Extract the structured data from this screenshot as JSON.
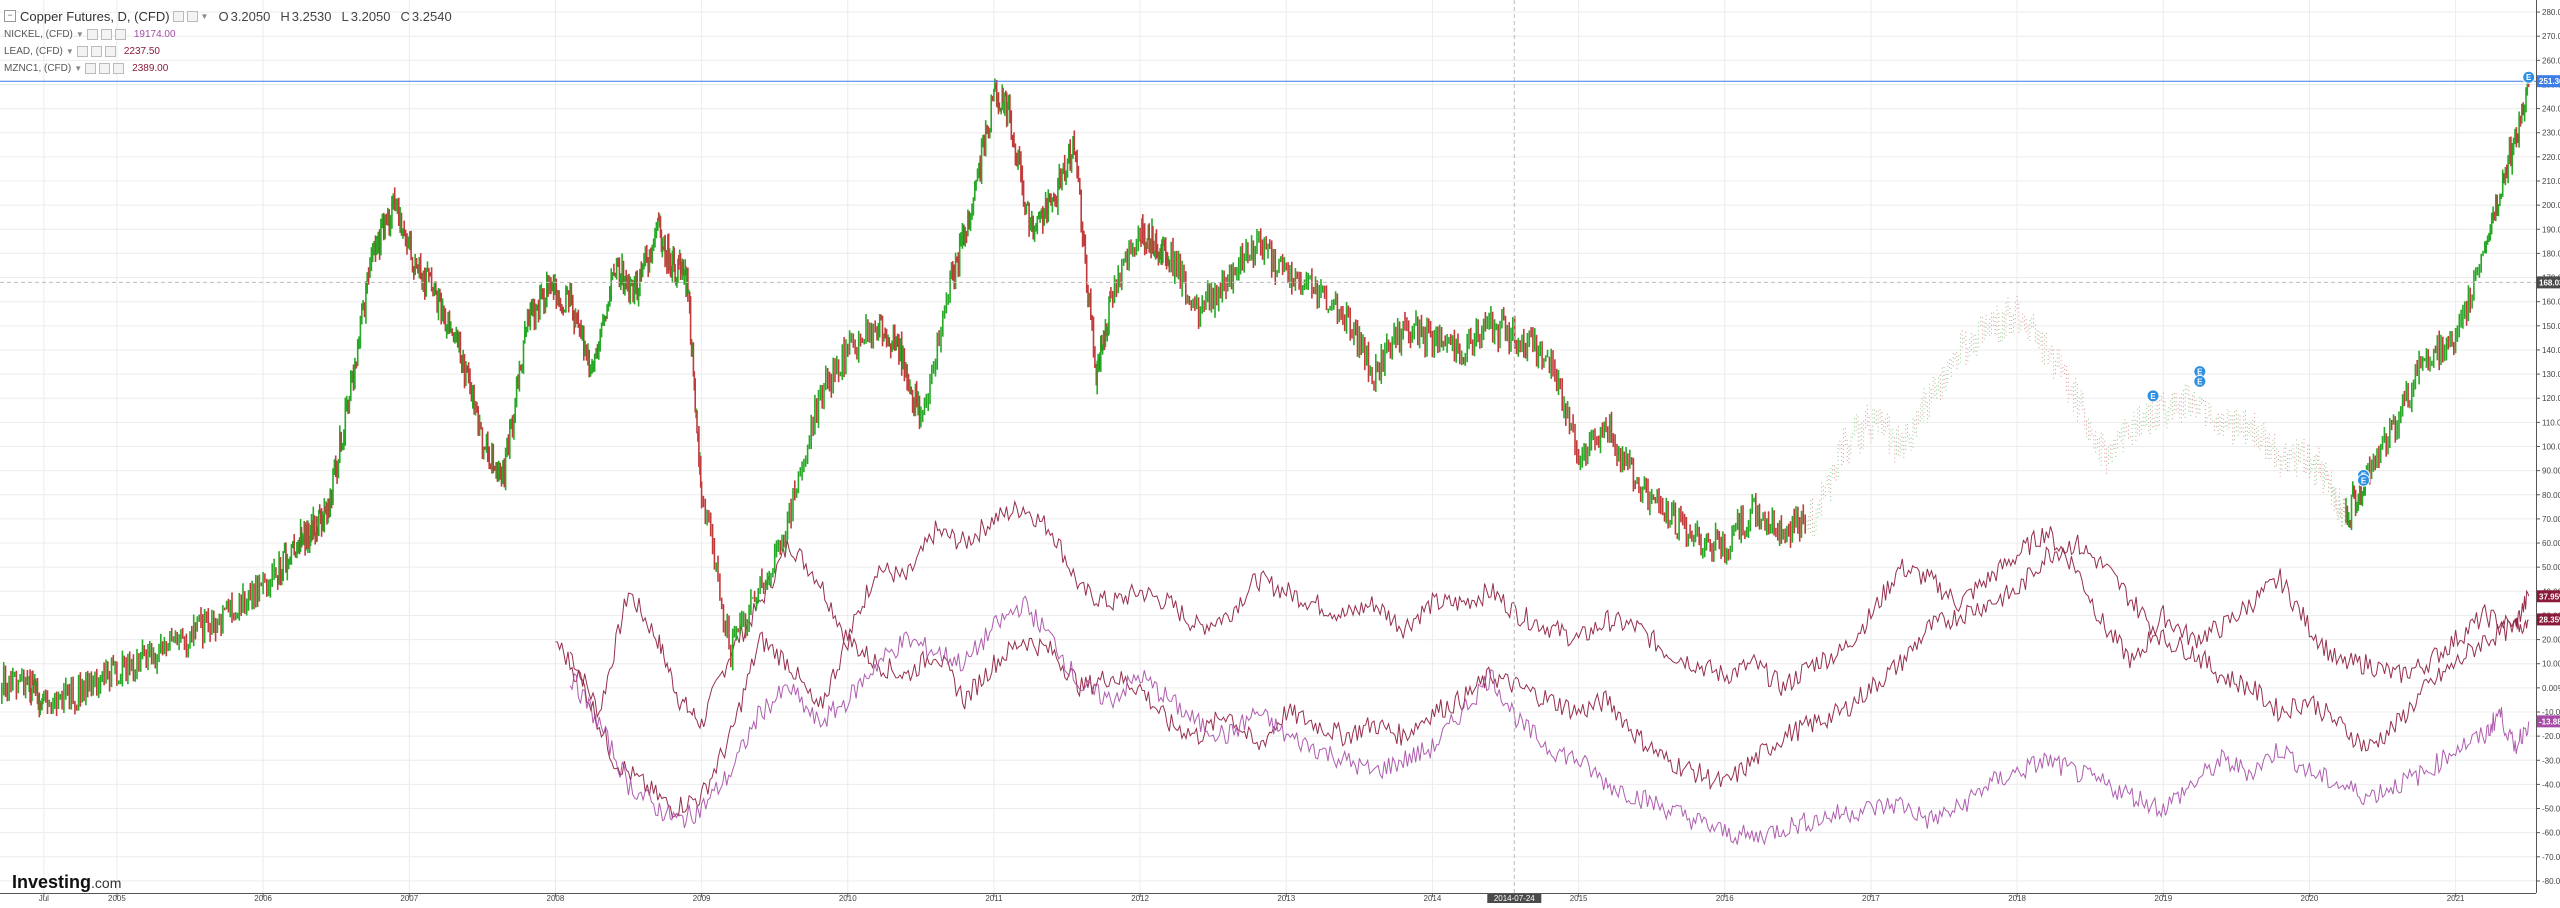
{
  "legend": {
    "main_title": "Copper Futures, D, (CFD)",
    "ohlc": {
      "o_label": "O",
      "o_value": "3.2050",
      "h_label": "H",
      "h_value": "3.2530",
      "l_label": "L",
      "l_value": "3.2050",
      "c_label": "C",
      "c_value": "3.2540"
    },
    "overlays": [
      {
        "name": "NICKEL, (CFD)",
        "value": "19174.00",
        "color": "#a64ca6"
      },
      {
        "name": "LEAD, (CFD)",
        "value": "2237.50",
        "color": "#8b1a3a"
      },
      {
        "name": "MZNC1, (CFD)",
        "value": "2389.00",
        "color": "#8b1a3a"
      }
    ]
  },
  "brand": {
    "name": "Investing",
    "suffix": ".com"
  },
  "chart_data": {
    "type": "line",
    "title": "Copper Futures, D, (CFD)",
    "y_unit": "%",
    "ylim": [
      -85,
      285
    ],
    "y_ticks": [
      "280.00%",
      "270.00%",
      "260.00%",
      "250.00%",
      "240.00%",
      "230.00%",
      "220.00%",
      "210.00%",
      "200.00%",
      "190.00%",
      "180.00%",
      "170.00%",
      "160.00%",
      "150.00%",
      "140.00%",
      "130.00%",
      "120.00%",
      "110.00%",
      "100.00%",
      "90.00%",
      "80.00%",
      "70.00%",
      "60.00%",
      "50.00%",
      "40.00%",
      "30.00%",
      "20.00%",
      "10.00%",
      "0.00%",
      "-10.00%",
      "-20.00%",
      "-30.00%",
      "-40.00%",
      "-50.00%",
      "-60.00%",
      "-70.00%",
      "-80.00%"
    ],
    "y_tick_values": [
      280,
      270,
      260,
      250,
      240,
      230,
      220,
      210,
      200,
      190,
      180,
      170,
      160,
      150,
      140,
      130,
      120,
      110,
      100,
      90,
      80,
      70,
      60,
      50,
      40,
      30,
      20,
      10,
      0,
      -10,
      -20,
      -30,
      -40,
      -50,
      -60,
      -70,
      -80
    ],
    "xlim": [
      2004.2,
      2021.55
    ],
    "x_ticks": [
      {
        "label": "Jul",
        "x": 2004.5
      },
      {
        "label": "2005",
        "x": 2005.0
      },
      {
        "label": "2006",
        "x": 2006.0
      },
      {
        "label": "2007",
        "x": 2007.0
      },
      {
        "label": "2008",
        "x": 2008.0
      },
      {
        "label": "2009",
        "x": 2009.0
      },
      {
        "label": "2010",
        "x": 2010.0
      },
      {
        "label": "2011",
        "x": 2011.0
      },
      {
        "label": "2012",
        "x": 2012.0
      },
      {
        "label": "2013",
        "x": 2013.0
      },
      {
        "label": "2014",
        "x": 2014.0
      },
      {
        "label": "2015",
        "x": 2015.0
      },
      {
        "label": "2016",
        "x": 2016.0
      },
      {
        "label": "2017",
        "x": 2017.0
      },
      {
        "label": "2018",
        "x": 2018.0
      },
      {
        "label": "2019",
        "x": 2019.0
      },
      {
        "label": "2020",
        "x": 2020.0
      },
      {
        "label": "2021",
        "x": 2021.0
      }
    ],
    "crosshair": {
      "x": 2014.56,
      "x_label": "2014-07-24",
      "y": 168,
      "y_label": "168.0300"
    },
    "price_line": {
      "y": 251.36,
      "label": "251.36%",
      "color": "#3d7de8"
    },
    "end_labels": [
      {
        "label": "37.95%",
        "y": 37.95,
        "color": "#8b1a3a"
      },
      {
        "label": "28.35%",
        "y": 28.35,
        "color": "#8b1a3a"
      },
      {
        "label": "-13.88%",
        "y": -13.88,
        "color": "#a64ca6"
      }
    ],
    "event_markers": [
      {
        "x": 2018.93,
        "y": 121
      },
      {
        "x": 2019.25,
        "y": 131
      },
      {
        "x": 2019.25,
        "y": 127
      },
      {
        "x": 2020.37,
        "y": 88
      },
      {
        "x": 2020.37,
        "y": 86
      },
      {
        "x": 2021.5,
        "y": 253
      }
    ],
    "series": [
      {
        "name": "Copper Futures, D, (CFD)",
        "color_up": "#27a827",
        "color_down": "#c23b3b",
        "x": [
          2004.2,
          2004.4,
          2004.5,
          2004.7,
          2004.9,
          2005.1,
          2005.3,
          2005.5,
          2005.7,
          2005.9,
          2006.1,
          2006.25,
          2006.35,
          2006.45,
          2006.6,
          2006.75,
          2006.9,
          2007.05,
          2007.2,
          2007.35,
          2007.5,
          2007.65,
          2007.8,
          2007.95,
          2008.1,
          2008.25,
          2008.4,
          2008.55,
          2008.7,
          2008.8,
          2008.9,
          2009.0,
          2009.2,
          2009.4,
          2009.6,
          2009.8,
          2010.0,
          2010.2,
          2010.35,
          2010.5,
          2010.7,
          2010.85,
          2011.0,
          2011.1,
          2011.25,
          2011.4,
          2011.55,
          2011.7,
          2011.8,
          2012.0,
          2012.1,
          2012.2,
          2012.4,
          2012.6,
          2012.8,
          2013.0,
          2013.2,
          2013.4,
          2013.6,
          2013.8,
          2014.0,
          2014.2,
          2014.4,
          2014.6,
          2014.8,
          2015.0,
          2015.2,
          2015.4,
          2015.6,
          2015.8,
          2016.0,
          2016.2,
          2016.4,
          2016.6,
          2016.8,
          2017.0,
          2017.2,
          2017.4,
          2017.6,
          2017.8,
          2018.0,
          2018.2,
          2018.4,
          2018.6,
          2018.8,
          2019.0,
          2019.2,
          2019.4,
          2019.6,
          2019.8,
          2020.0,
          2020.15,
          2020.25,
          2020.4,
          2020.6,
          2020.8,
          2021.0,
          2021.2,
          2021.35,
          2021.5
        ],
        "y": [
          2,
          0,
          -8,
          -3,
          5,
          10,
          15,
          22,
          28,
          38,
          48,
          62,
          66,
          75,
          125,
          180,
          200,
          175,
          160,
          140,
          100,
          88,
          150,
          165,
          160,
          130,
          175,
          165,
          190,
          175,
          170,
          80,
          15,
          40,
          70,
          120,
          140,
          150,
          140,
          110,
          165,
          200,
          245,
          240,
          190,
          200,
          225,
          130,
          160,
          190,
          185,
          180,
          155,
          170,
          185,
          170,
          165,
          155,
          130,
          150,
          145,
          140,
          150,
          145,
          135,
          98,
          108,
          85,
          72,
          62,
          58,
          73,
          65,
          70,
          100,
          110,
          100,
          120,
          140,
          150,
          155,
          140,
          120,
          95,
          110,
          115,
          120,
          110,
          105,
          95,
          95,
          82,
          70,
          90,
          110,
          140,
          140,
          185,
          215,
          250
        ]
      },
      {
        "name": "MZNC1, (CFD)",
        "color": "#8b1a3a",
        "x": [
          2008.1,
          2008.3,
          2008.5,
          2008.7,
          2008.85,
          2009.0,
          2009.2,
          2009.4,
          2009.6,
          2009.8,
          2010.0,
          2010.2,
          2010.4,
          2010.6,
          2010.8,
          2011.0,
          2011.2,
          2011.4,
          2011.6,
          2011.8,
          2012.0,
          2012.2,
          2012.4,
          2012.6,
          2012.8,
          2013.0,
          2013.2,
          2013.4,
          2013.6,
          2013.8,
          2014.0,
          2014.2,
          2014.4,
          2014.6,
          2014.8,
          2015.0,
          2015.2,
          2015.4,
          2015.6,
          2015.8,
          2016.0,
          2016.2,
          2016.4,
          2016.6,
          2016.8,
          2017.0,
          2017.2,
          2017.4,
          2017.6,
          2017.8,
          2018.0,
          2018.2,
          2018.4,
          2018.6,
          2018.8,
          2019.0,
          2019.2,
          2019.4,
          2019.6,
          2019.8,
          2020.0,
          2020.2,
          2020.4,
          2020.6,
          2020.8,
          2021.0,
          2021.2,
          2021.4,
          2021.5
        ],
        "y": [
          15,
          -10,
          40,
          20,
          -5,
          -15,
          15,
          35,
          60,
          45,
          20,
          50,
          45,
          65,
          60,
          70,
          75,
          65,
          40,
          35,
          40,
          35,
          25,
          30,
          45,
          40,
          35,
          30,
          35,
          25,
          35,
          35,
          40,
          30,
          25,
          20,
          28,
          25,
          15,
          10,
          5,
          10,
          0,
          10,
          15,
          30,
          50,
          45,
          35,
          45,
          55,
          65,
          50,
          25,
          10,
          30,
          20,
          25,
          35,
          45,
          25,
          10,
          10,
          5,
          10,
          20,
          30,
          25,
          38
        ]
      },
      {
        "name": "LEAD, (CFD)",
        "color": "#8b1a3a",
        "x": [
          2008.0,
          2008.2,
          2008.4,
          2008.6,
          2008.8,
          2009.0,
          2009.2,
          2009.4,
          2009.6,
          2009.8,
          2010.0,
          2010.2,
          2010.4,
          2010.6,
          2010.8,
          2011.0,
          2011.2,
          2011.4,
          2011.6,
          2011.8,
          2012.0,
          2012.2,
          2012.4,
          2012.6,
          2012.8,
          2013.0,
          2013.2,
          2013.4,
          2013.6,
          2013.8,
          2014.0,
          2014.2,
          2014.4,
          2014.6,
          2014.8,
          2015.0,
          2015.2,
          2015.4,
          2015.6,
          2015.8,
          2016.0,
          2016.2,
          2016.4,
          2016.6,
          2016.8,
          2017.0,
          2017.2,
          2017.4,
          2017.6,
          2017.8,
          2018.0,
          2018.2,
          2018.4,
          2018.6,
          2018.8,
          2019.0,
          2019.2,
          2019.4,
          2019.6,
          2019.8,
          2020.0,
          2020.2,
          2020.4,
          2020.6,
          2020.8,
          2021.0,
          2021.2,
          2021.4,
          2021.5
        ],
        "y": [
          20,
          0,
          -30,
          -40,
          -50,
          -45,
          -20,
          20,
          10,
          -10,
          20,
          10,
          5,
          15,
          -5,
          10,
          20,
          15,
          0,
          5,
          0,
          -15,
          -20,
          -10,
          -25,
          -10,
          -15,
          -20,
          -15,
          -20,
          -10,
          -5,
          5,
          0,
          -5,
          -10,
          -5,
          -20,
          -30,
          -35,
          -40,
          -30,
          -20,
          -15,
          -10,
          0,
          10,
          25,
          30,
          35,
          40,
          55,
          60,
          50,
          35,
          20,
          15,
          5,
          0,
          -10,
          -5,
          -15,
          -25,
          -15,
          0,
          10,
          20,
          25,
          28
        ]
      },
      {
        "name": "NICKEL, (CFD)",
        "color": "#a64ca6",
        "x": [
          2008.1,
          2008.3,
          2008.5,
          2008.7,
          2008.85,
          2009.0,
          2009.2,
          2009.4,
          2009.6,
          2009.8,
          2010.0,
          2010.2,
          2010.4,
          2010.6,
          2010.8,
          2011.0,
          2011.2,
          2011.4,
          2011.6,
          2011.8,
          2012.0,
          2012.2,
          2012.4,
          2012.6,
          2012.8,
          2013.0,
          2013.2,
          2013.4,
          2013.6,
          2013.8,
          2014.0,
          2014.2,
          2014.4,
          2014.6,
          2014.8,
          2015.0,
          2015.2,
          2015.4,
          2015.6,
          2015.8,
          2016.0,
          2016.2,
          2016.4,
          2016.6,
          2016.8,
          2017.0,
          2017.2,
          2017.4,
          2017.6,
          2017.8,
          2018.0,
          2018.2,
          2018.4,
          2018.6,
          2018.8,
          2019.0,
          2019.2,
          2019.4,
          2019.6,
          2019.8,
          2020.0,
          2020.2,
          2020.4,
          2020.6,
          2020.8,
          2021.0,
          2021.2,
          2021.3,
          2021.4,
          2021.5
        ],
        "y": [
          5,
          -15,
          -40,
          -50,
          -55,
          -50,
          -35,
          -10,
          0,
          -15,
          -5,
          10,
          20,
          15,
          10,
          25,
          35,
          20,
          0,
          -5,
          5,
          -5,
          -15,
          -20,
          -10,
          -20,
          -25,
          -30,
          -35,
          -30,
          -25,
          -10,
          5,
          -15,
          -25,
          -30,
          -40,
          -45,
          -50,
          -55,
          -60,
          -62,
          -58,
          -55,
          -52,
          -50,
          -48,
          -55,
          -50,
          -40,
          -35,
          -30,
          -35,
          -40,
          -45,
          -50,
          -40,
          -30,
          -35,
          -25,
          -35,
          -40,
          -45,
          -40,
          -35,
          -25,
          -20,
          -10,
          -25,
          -14
        ]
      }
    ]
  }
}
